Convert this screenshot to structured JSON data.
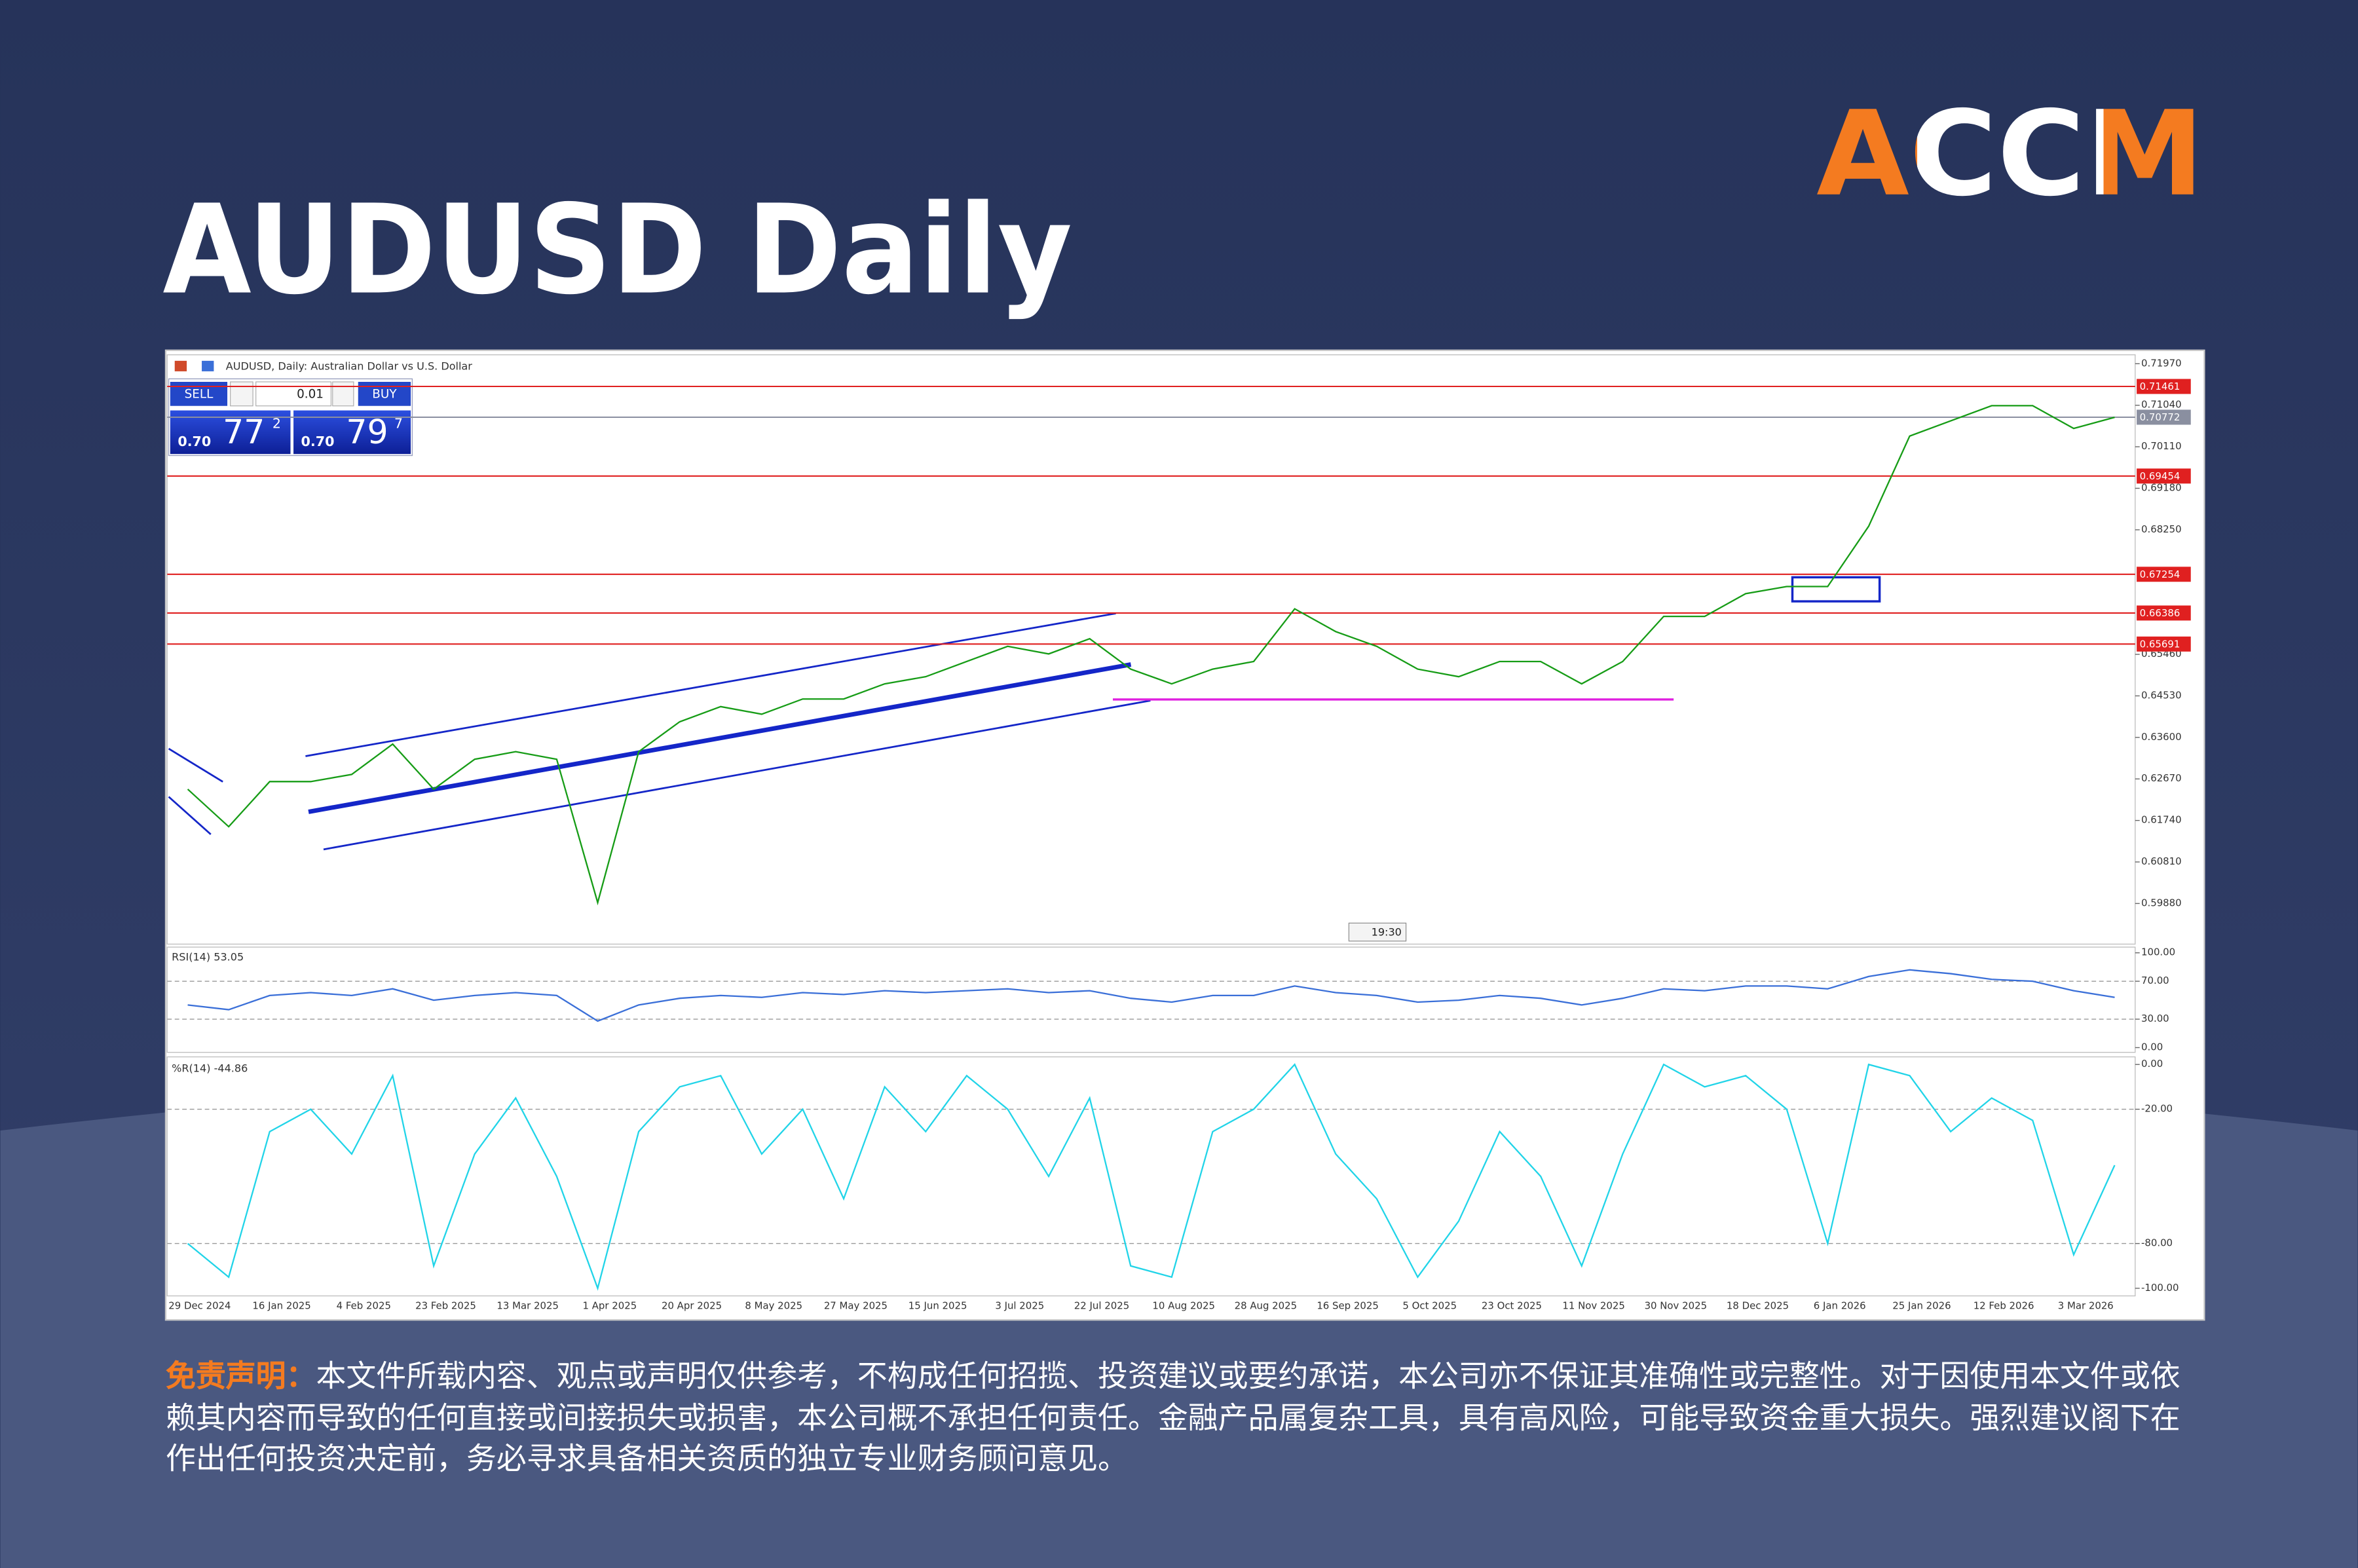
{
  "header": {
    "title": "AUDUSD Daily",
    "logo": "ACCM"
  },
  "trade_panel": {
    "sell": "SELL",
    "buy": "BUY",
    "volume": "0.01",
    "bid": {
      "big": "0.70",
      "main": "77",
      "sup": "2"
    },
    "ask": {
      "big": "0.70",
      "main": "79",
      "sup": "7"
    }
  },
  "time_marker": "19:30",
  "disclaimer": {
    "label": "免责声明：",
    "text": "本文件所载内容、观点或声明仅供参考，不构成任何招揽、投资建议或要约承诺，本公司亦不保证其准确性或完整性。对于因使用本文件或依赖其内容而导致的任何直接或间接损失或损害，本公司概不承担任何责任。金融产品属复杂工具，具有高风险，可能导致资金重大损失。强烈建议阁下在作出任何投资决定前，务必寻求具备相关资质的独立专业财务顾问意见。"
  },
  "chart_data": [
    {
      "type": "line",
      "title": "AUDUSD, Daily: Australian Dollar vs U.S. Dollar",
      "categories": [
        "29 Dec 2024",
        null,
        "16 Jan 2025",
        null,
        "4 Feb 2025",
        null,
        "23 Feb 2025",
        null,
        "13 Mar 2025",
        null,
        "1 Apr 2025",
        null,
        "20 Apr 2025",
        null,
        "8 May 2025",
        null,
        "27 May 2025",
        null,
        "15 Jun 2025",
        null,
        "3 Jul 2025",
        null,
        "22 Jul 2025",
        null,
        "10 Aug 2025",
        null,
        "28 Aug 2025",
        null,
        "16 Sep 2025",
        null,
        "5 Oct 2025",
        null,
        "23 Oct 2025",
        null,
        "11 Nov 2025",
        null,
        "30 Nov 2025",
        null,
        "18 Dec 2025",
        null,
        "6 Jan 2026",
        null,
        "25 Jan 2026",
        null,
        "12 Feb 2026",
        null,
        "3 Mar 2026",
        null
      ],
      "values": [
        0.6244,
        0.616,
        0.6261,
        0.6261,
        0.6277,
        0.6345,
        0.6244,
        0.6311,
        0.6328,
        0.6311,
        0.599,
        0.6328,
        0.6395,
        0.6429,
        0.6412,
        0.6446,
        0.6446,
        0.648,
        0.6496,
        0.653,
        0.6564,
        0.6547,
        0.6581,
        0.6513,
        0.648,
        0.6513,
        0.653,
        0.6648,
        0.6597,
        0.6564,
        0.6513,
        0.6496,
        0.653,
        0.653,
        0.648,
        0.653,
        0.6631,
        0.6631,
        0.6682,
        0.6698,
        0.6698,
        0.6833,
        0.7035,
        0.7069,
        0.7103,
        0.7103,
        0.7052,
        0.7077
      ],
      "color": "#169c16",
      "ylim": [
        0.5897,
        0.7217
      ],
      "yticks": [
        {
          "value": 0.7197,
          "label": "0.71970"
        },
        {
          "value": 0.7104,
          "label": "0.71040"
        },
        {
          "value": 0.7011,
          "label": "0.70110"
        },
        {
          "value": 0.6918,
          "label": "0.69180"
        },
        {
          "value": 0.6825,
          "label": "0.68250"
        },
        {
          "value": 0.6546,
          "label": "0.65460"
        },
        {
          "value": 0.6453,
          "label": "0.64530"
        },
        {
          "value": 0.636,
          "label": "0.63600"
        },
        {
          "value": 0.6267,
          "label": "0.62670"
        },
        {
          "value": 0.6174,
          "label": "0.61740"
        },
        {
          "value": 0.6081,
          "label": "0.60810"
        },
        {
          "value": 0.5988,
          "label": "0.59880"
        }
      ],
      "levels": [
        {
          "value": 0.71461,
          "color": "#e02020"
        },
        {
          "value": 0.70772,
          "color": "#8a8fa0"
        },
        {
          "value": 0.69454,
          "color": "#e02020"
        },
        {
          "value": 0.67254,
          "color": "#e02020"
        },
        {
          "value": 0.66386,
          "color": "#e02020"
        },
        {
          "value": 0.65691,
          "color": "#e02020"
        }
      ],
      "support": {
        "value": 0.6445,
        "color": "#e020e0"
      }
    },
    {
      "type": "line",
      "title": "RSI(14) 53.05",
      "values": [
        45,
        40,
        55,
        58,
        55,
        62,
        50,
        55,
        58,
        55,
        28,
        45,
        52,
        55,
        53,
        58,
        56,
        60,
        58,
        60,
        62,
        58,
        60,
        52,
        48,
        55,
        55,
        65,
        58,
        55,
        48,
        50,
        55,
        52,
        45,
        52,
        62,
        60,
        65,
        65,
        62,
        75,
        82,
        78,
        72,
        70,
        60,
        53
      ],
      "color": "#3a6fd8",
      "ylim": [
        -5,
        106
      ],
      "yticks": [
        {
          "value": 100,
          "label": "100.00"
        },
        {
          "value": 70,
          "label": "70.00"
        },
        {
          "value": 30,
          "label": "30.00"
        },
        {
          "value": 0,
          "label": "0.00"
        }
      ],
      "levels": [
        70,
        30
      ]
    },
    {
      "type": "line",
      "title": "%R(14) -44.86",
      "values": [
        -80,
        -95,
        -30,
        -20,
        -40,
        -5,
        -90,
        -40,
        -15,
        -50,
        -100,
        -30,
        -10,
        -5,
        -40,
        -20,
        -60,
        -10,
        -30,
        -5,
        -20,
        -50,
        -15,
        -90,
        -95,
        -30,
        -20,
        0,
        -40,
        -60,
        -95,
        -70,
        -30,
        -50,
        -90,
        -40,
        0,
        -10,
        -5,
        -20,
        -80,
        0,
        -5,
        -30,
        -15,
        -25,
        -85,
        -45
      ],
      "color": "#21d4e8",
      "ylim": [
        -103.4,
        3.4
      ],
      "yticks": [
        {
          "value": 0,
          "label": "0.00"
        },
        {
          "value": -20,
          "label": "-20.00"
        },
        {
          "value": -80,
          "label": "-80.00"
        },
        {
          "value": -100,
          "label": "-100.00"
        }
      ],
      "levels": [
        -20,
        -80
      ]
    }
  ]
}
